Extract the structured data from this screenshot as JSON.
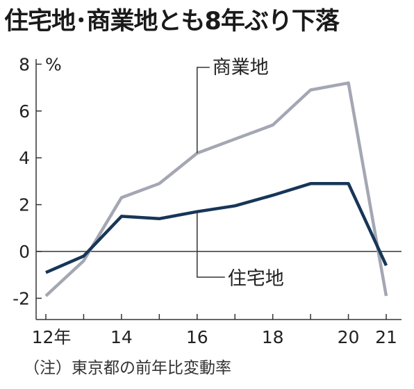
{
  "title": "住宅地･商業地とも8年ぶり下落",
  "note": "（注）東京都の前年比変動率",
  "colors": {
    "commercial": "#a4a7b3",
    "residential": "#173658",
    "axis": "#333333"
  },
  "chart_data": {
    "type": "line",
    "title": "住宅地･商業地とも8年ぶり下落",
    "ylabel": "%",
    "ylim": [
      -2.6,
      8.3
    ],
    "yticks": [
      -2,
      0,
      2,
      4,
      6,
      8
    ],
    "x": [
      12,
      13,
      14,
      15,
      16,
      17,
      18,
      19,
      20,
      21
    ],
    "xticks": [
      12,
      14,
      16,
      18,
      20,
      21
    ],
    "xtick_labels": [
      "12年",
      "14",
      "16",
      "18",
      "20",
      "21"
    ],
    "grid": false,
    "series": [
      {
        "name": "商業地",
        "values": [
          -1.9,
          -0.4,
          2.3,
          2.9,
          4.2,
          4.8,
          5.4,
          6.9,
          7.2,
          -1.9
        ]
      },
      {
        "name": "住宅地",
        "values": [
          -0.9,
          -0.2,
          1.5,
          1.4,
          1.7,
          1.95,
          2.4,
          2.9,
          2.9,
          -0.6
        ]
      }
    ]
  }
}
